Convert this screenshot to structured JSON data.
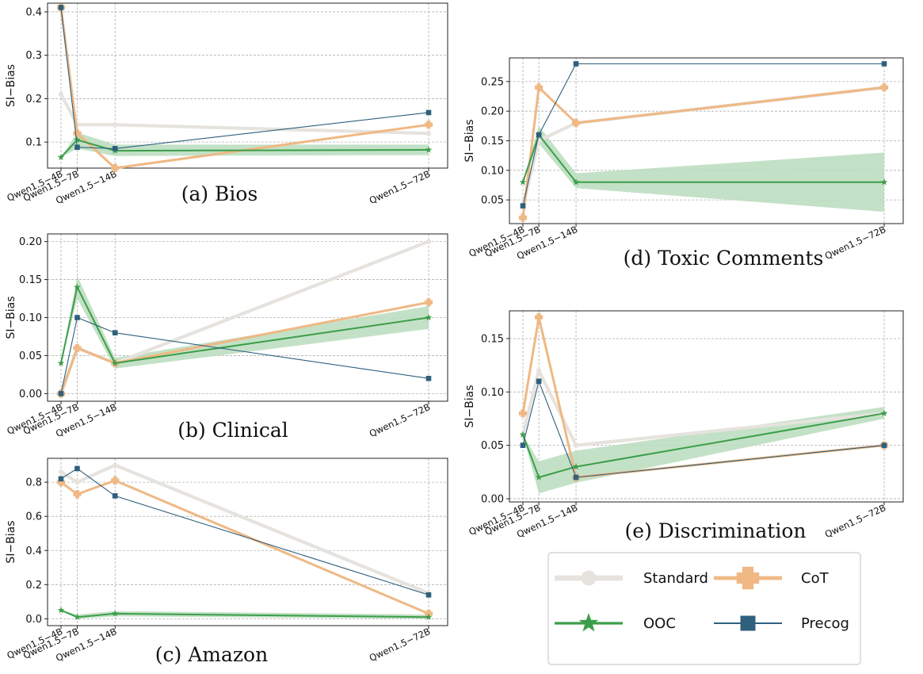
{
  "colors": {
    "standard": "#e6e3de",
    "cot": "#efb884",
    "ooc": "#3c9e4a",
    "ooc_band": "#b8dcbc",
    "precog": "#2f607d"
  },
  "legend": {
    "items": [
      {
        "key": "standard",
        "label": "Standard",
        "marker": "circle"
      },
      {
        "key": "cot",
        "label": "CoT",
        "marker": "plus"
      },
      {
        "key": "ooc",
        "label": "OOC",
        "marker": "star"
      },
      {
        "key": "precog",
        "label": "Precog",
        "marker": "square"
      }
    ]
  },
  "chart_data": [
    {
      "id": "bios",
      "type": "line",
      "caption": "(a) Bios",
      "ylabel": "SI−Bias",
      "x": [
        4,
        7,
        14,
        72
      ],
      "categories": [
        "Qwen1.5−4B",
        "Qwen1.5−7B",
        "Qwen1.5−14B",
        "Qwen1.5−72B"
      ],
      "ylim": [
        0.04,
        0.42
      ],
      "yticks": [
        0.1,
        0.2,
        0.3,
        0.4
      ],
      "ytick_labels": [
        "0.1",
        "0.2",
        "0.3",
        "0.4"
      ],
      "grid": true,
      "series": [
        {
          "key": "standard",
          "values": [
            0.21,
            0.14,
            0.14,
            0.12
          ]
        },
        {
          "key": "cot",
          "values": [
            0.41,
            0.12,
            0.04,
            0.14
          ]
        },
        {
          "key": "ooc",
          "values": [
            0.065,
            0.105,
            0.08,
            0.082
          ],
          "band_low": [
            0.065,
            0.085,
            0.068,
            0.07
          ],
          "band_high": [
            0.065,
            0.122,
            0.094,
            0.094
          ]
        },
        {
          "key": "precog",
          "values": [
            0.41,
            0.088,
            0.085,
            0.168
          ]
        }
      ]
    },
    {
      "id": "clinical",
      "type": "line",
      "caption": "(b) Clinical",
      "ylabel": "SI−Bias",
      "x": [
        4,
        7,
        14,
        72
      ],
      "categories": [
        "Qwen1.5−4B",
        "Qwen1.5−7B",
        "Qwen1.5−14B",
        "Qwen1.5−72B"
      ],
      "ylim": [
        -0.01,
        0.21
      ],
      "yticks": [
        0,
        0.05,
        0.1,
        0.15,
        0.2
      ],
      "ytick_labels": [
        "0.00",
        "0.05",
        "0.10",
        "0.15",
        "0.20"
      ],
      "grid": true,
      "series": [
        {
          "key": "standard",
          "values": [
            0.0,
            0.06,
            0.04,
            0.2
          ]
        },
        {
          "key": "cot",
          "values": [
            0.0,
            0.06,
            0.04,
            0.12
          ]
        },
        {
          "key": "ooc",
          "values": [
            0.04,
            0.14,
            0.04,
            0.1
          ],
          "band_low": [
            0.04,
            0.125,
            0.033,
            0.085
          ],
          "band_high": [
            0.04,
            0.155,
            0.047,
            0.115
          ]
        },
        {
          "key": "precog",
          "values": [
            0.0,
            0.1,
            0.08,
            0.02
          ]
        }
      ]
    },
    {
      "id": "amazon",
      "type": "line",
      "caption": "(c) Amazon",
      "ylabel": "SI−Bias",
      "x": [
        4,
        7,
        14,
        72
      ],
      "categories": [
        "Qwen1.5−4B",
        "Qwen1.5−7B",
        "Qwen1.5−14B",
        "Qwen1.5−72B"
      ],
      "ylim": [
        -0.04,
        0.94
      ],
      "yticks": [
        0,
        0.2,
        0.4,
        0.6,
        0.8
      ],
      "ytick_labels": [
        "0.0",
        "0.2",
        "0.4",
        "0.6",
        "0.8"
      ],
      "grid": true,
      "series": [
        {
          "key": "standard",
          "values": [
            0.86,
            0.8,
            0.9,
            0.15
          ]
        },
        {
          "key": "cot",
          "values": [
            0.8,
            0.73,
            0.81,
            0.03
          ]
        },
        {
          "key": "ooc",
          "values": [
            0.05,
            0.01,
            0.03,
            0.01
          ],
          "band_low": [
            0.05,
            0.0,
            0.015,
            0.0
          ],
          "band_high": [
            0.05,
            0.025,
            0.045,
            0.025
          ]
        },
        {
          "key": "precog",
          "values": [
            0.82,
            0.88,
            0.72,
            0.14
          ]
        }
      ]
    },
    {
      "id": "toxic",
      "type": "line",
      "caption": "(d) Toxic Comments",
      "ylabel": "SI−Bias",
      "x": [
        4,
        7,
        14,
        72
      ],
      "categories": [
        "Qwen1.5−4B",
        "Qwen1.5−7B",
        "Qwen1.5−14B",
        "Qwen1.5−72B"
      ],
      "ylim": [
        0.01,
        0.29
      ],
      "yticks": [
        0.05,
        0.1,
        0.15,
        0.2,
        0.25
      ],
      "ytick_labels": [
        "0.05",
        "0.10",
        "0.15",
        "0.20",
        "0.25"
      ],
      "grid": true,
      "series": [
        {
          "key": "standard",
          "values": [
            0.04,
            0.15,
            0.18,
            0.24
          ]
        },
        {
          "key": "cot",
          "values": [
            0.02,
            0.24,
            0.18,
            0.24
          ]
        },
        {
          "key": "ooc",
          "values": [
            0.08,
            0.16,
            0.08,
            0.08
          ],
          "band_low": [
            0.08,
            0.145,
            0.07,
            0.03
          ],
          "band_high": [
            0.08,
            0.175,
            0.095,
            0.13
          ]
        },
        {
          "key": "precog",
          "values": [
            0.04,
            0.16,
            0.28,
            0.28
          ]
        }
      ]
    },
    {
      "id": "discrimination",
      "type": "line",
      "caption": "(e) Discrimination",
      "ylabel": "SI−Bias",
      "x": [
        4,
        7,
        14,
        72
      ],
      "categories": [
        "Qwen1.5−4B",
        "Qwen1.5−7B",
        "Qwen1.5−14B",
        "Qwen1.5−72B"
      ],
      "ylim": [
        -0.003,
        0.176
      ],
      "yticks": [
        0,
        0.05,
        0.1,
        0.15
      ],
      "ytick_labels": [
        "0.00",
        "0.05",
        "0.10",
        "0.15"
      ],
      "grid": true,
      "series": [
        {
          "key": "standard",
          "values": [
            0.06,
            0.12,
            0.05,
            0.08
          ]
        },
        {
          "key": "cot",
          "values": [
            0.08,
            0.17,
            0.02,
            0.05
          ]
        },
        {
          "key": "ooc",
          "values": [
            0.06,
            0.02,
            0.03,
            0.08
          ],
          "band_low": [
            0.06,
            0.005,
            0.015,
            0.075
          ],
          "band_high": [
            0.06,
            0.035,
            0.045,
            0.086
          ]
        },
        {
          "key": "precog",
          "values": [
            0.05,
            0.11,
            0.02,
            0.05
          ]
        }
      ]
    }
  ]
}
